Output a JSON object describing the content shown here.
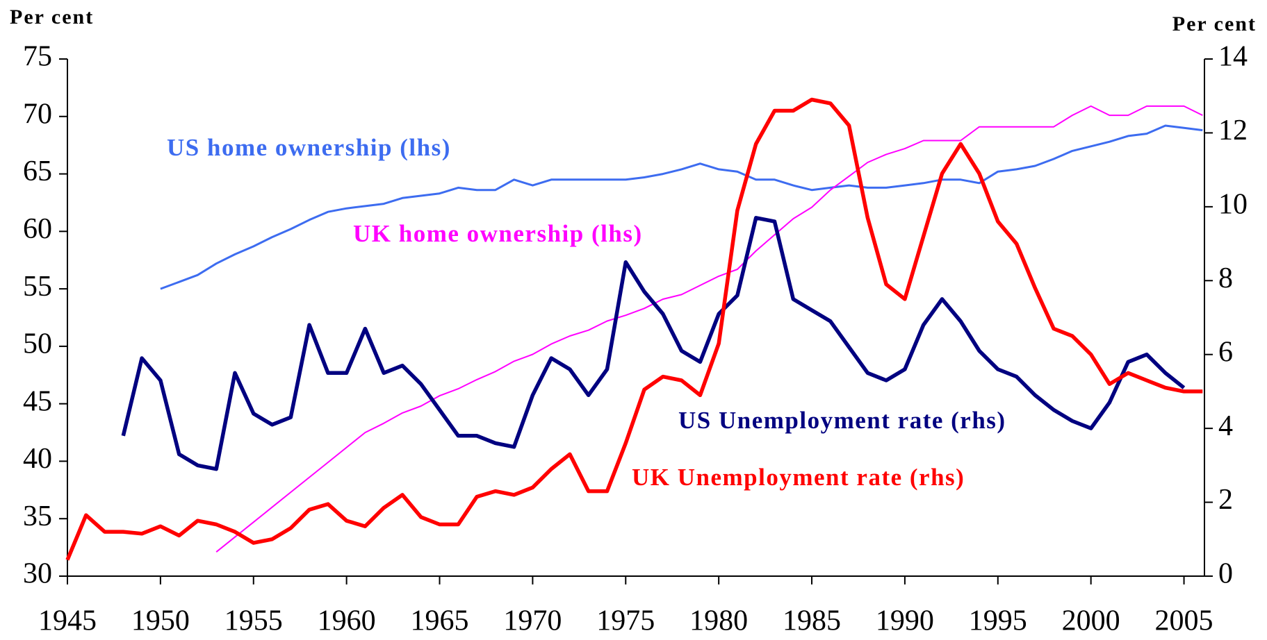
{
  "chart_data": {
    "type": "line",
    "y_label": "Per cent",
    "y2_label": "Per cent",
    "x": [
      1945,
      1946,
      1947,
      1948,
      1949,
      1950,
      1951,
      1952,
      1953,
      1954,
      1955,
      1956,
      1957,
      1958,
      1959,
      1960,
      1961,
      1962,
      1963,
      1964,
      1965,
      1966,
      1967,
      1968,
      1969,
      1970,
      1971,
      1972,
      1973,
      1974,
      1975,
      1976,
      1977,
      1978,
      1979,
      1980,
      1981,
      1982,
      1983,
      1984,
      1985,
      1986,
      1987,
      1988,
      1989,
      1990,
      1991,
      1992,
      1993,
      1994,
      1995,
      1996,
      1997,
      1998,
      1999,
      2000,
      2001,
      2002,
      2003,
      2004,
      2005,
      2006
    ],
    "xlim": [
      1945,
      2006.1
    ],
    "xticks": [
      1945,
      1950,
      1955,
      1960,
      1965,
      1970,
      1975,
      1980,
      1985,
      1990,
      1995,
      2000,
      2005
    ],
    "ylim": [
      30,
      75
    ],
    "yticks": [
      30,
      35,
      40,
      45,
      50,
      55,
      60,
      65,
      70,
      75
    ],
    "y2lim": [
      0,
      14
    ],
    "y2ticks": [
      0,
      2,
      4,
      6,
      8,
      10,
      12,
      14
    ],
    "series": [
      {
        "name": "US home ownership (lhs)",
        "color": "#3d6cf0",
        "axis": "y",
        "values": [
          null,
          null,
          null,
          null,
          null,
          55.0,
          55.6,
          56.2,
          57.2,
          58.0,
          58.7,
          59.5,
          60.2,
          61.0,
          61.7,
          62.0,
          62.2,
          62.4,
          62.9,
          63.1,
          63.3,
          63.8,
          63.6,
          63.6,
          64.5,
          64.0,
          64.5,
          64.5,
          64.5,
          64.5,
          64.5,
          64.7,
          65.0,
          65.4,
          65.9,
          65.4,
          65.2,
          64.5,
          64.5,
          64.0,
          63.6,
          63.8,
          64.0,
          63.8,
          63.8,
          64.0,
          64.2,
          64.5,
          64.5,
          64.2,
          65.2,
          65.4,
          65.7,
          66.3,
          67.0,
          67.4,
          67.8,
          68.3,
          68.5,
          69.2,
          69.0,
          68.8
        ]
      },
      {
        "name": "UK home ownership (lhs)",
        "color": "#ff00ff",
        "axis": "y",
        "values": [
          null,
          null,
          null,
          null,
          null,
          null,
          null,
          null,
          32.1,
          33.4,
          34.7,
          36.0,
          37.3,
          38.6,
          39.9,
          41.2,
          42.5,
          43.3,
          44.2,
          44.8,
          45.7,
          46.3,
          47.1,
          47.8,
          48.7,
          49.3,
          50.2,
          50.9,
          51.4,
          52.2,
          52.7,
          53.3,
          54.1,
          54.5,
          55.3,
          56.1,
          56.7,
          58.3,
          59.7,
          61.1,
          62.1,
          63.6,
          64.8,
          66.0,
          66.7,
          67.2,
          67.9,
          67.9,
          67.9,
          69.1,
          69.1,
          69.1,
          69.1,
          69.1,
          70.1,
          70.9,
          70.1,
          70.1,
          70.9,
          70.9,
          70.9,
          70.1
        ]
      },
      {
        "name": "US Unemployment rate (rhs)",
        "color": "#000080",
        "axis": "y2",
        "values": [
          null,
          null,
          null,
          3.8,
          5.9,
          5.3,
          3.3,
          3.0,
          2.9,
          5.5,
          4.4,
          4.1,
          4.3,
          6.8,
          5.5,
          5.5,
          6.7,
          5.5,
          5.7,
          5.2,
          4.5,
          3.8,
          3.8,
          3.6,
          3.5,
          4.9,
          5.9,
          5.6,
          4.9,
          5.6,
          8.5,
          7.7,
          7.1,
          6.1,
          5.8,
          7.1,
          7.6,
          9.7,
          9.6,
          7.5,
          7.2,
          6.9,
          6.2,
          5.5,
          5.3,
          5.6,
          6.8,
          7.5,
          6.9,
          6.1,
          5.6,
          5.4,
          4.9,
          4.5,
          4.2,
          4.0,
          4.7,
          5.8,
          6.0,
          5.5,
          5.1,
          null
        ]
      },
      {
        "name": "UK Unemployment rate (rhs)",
        "color": "#ff0000",
        "axis": "y2",
        "values": [
          0.44,
          1.65,
          1.2,
          1.2,
          1.15,
          1.35,
          1.1,
          1.5,
          1.4,
          1.2,
          0.9,
          1.0,
          1.3,
          1.8,
          1.95,
          1.5,
          1.35,
          1.85,
          2.2,
          1.6,
          1.4,
          1.4,
          2.15,
          2.3,
          2.2,
          2.4,
          2.9,
          3.3,
          2.3,
          2.3,
          3.6,
          5.05,
          5.4,
          5.3,
          4.9,
          6.3,
          9.9,
          11.7,
          12.6,
          12.6,
          12.9,
          12.8,
          12.2,
          9.7,
          7.9,
          7.5,
          9.2,
          10.9,
          11.7,
          10.9,
          9.6,
          9.0,
          7.8,
          6.7,
          6.5,
          6.0,
          5.2,
          5.5,
          5.3,
          5.1,
          5.0,
          5.0
        ]
      }
    ]
  }
}
